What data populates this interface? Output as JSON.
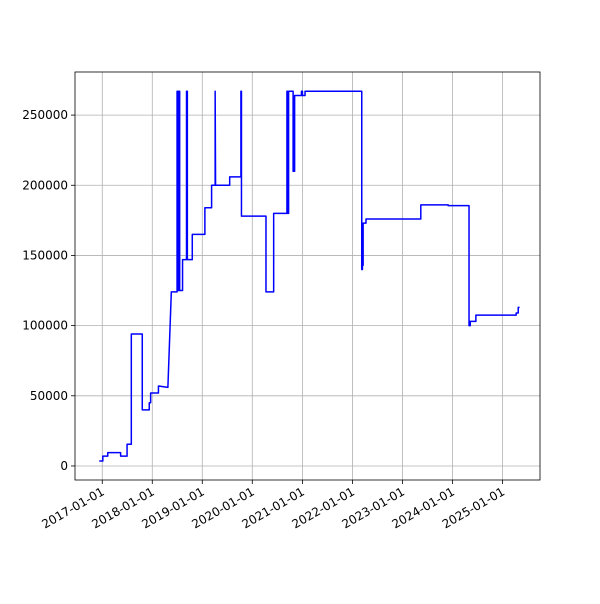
{
  "chart_data": {
    "type": "line",
    "grid": true,
    "series": [
      {
        "color": "#0000ff",
        "x": [
          "2016-12-10",
          "2017-01-05",
          "2017-01-05",
          "2017-02-10",
          "2017-02-10",
          "2017-05-15",
          "2017-05-15",
          "2017-07-01",
          "2017-07-01",
          "2017-08-01",
          "2017-08-01",
          "2017-10-20",
          "2017-10-20",
          "2017-12-10",
          "2017-12-10",
          "2017-12-20",
          "2017-12-20",
          "2018-02-15",
          "2018-02-15",
          "2018-04-25",
          "2018-05-20",
          "2018-07-01",
          "2018-07-01",
          "2018-07-05",
          "2018-07-05",
          "2018-07-12",
          "2018-07-12",
          "2018-07-20",
          "2018-07-20",
          "2018-08-10",
          "2018-08-10",
          "2018-09-08",
          "2018-09-08",
          "2018-09-14",
          "2018-09-14",
          "2018-10-20",
          "2018-10-20",
          "2019-01-20",
          "2019-01-20",
          "2019-03-10",
          "2019-03-10",
          "2019-04-05",
          "2019-04-05",
          "2019-04-08",
          "2019-07-20",
          "2019-07-20",
          "2019-10-10",
          "2019-10-10",
          "2019-10-14",
          "2019-10-14",
          "2020-04-10",
          "2020-04-10",
          "2020-06-05",
          "2020-06-05",
          "2020-09-10",
          "2020-09-10",
          "2020-09-16",
          "2020-09-16",
          "2020-09-22",
          "2020-09-22",
          "2020-10-25",
          "2020-10-25",
          "2020-11-05",
          "2020-11-05",
          "2020-12-25",
          "2020-12-25",
          "2021-01-01",
          "2021-01-01",
          "2021-01-20",
          "2021-01-20",
          "2022-03-10",
          "2022-03-10",
          "2022-03-15",
          "2022-03-15",
          "2022-03-20",
          "2022-03-20",
          "2022-04-10",
          "2022-04-10",
          "2023-05-15",
          "2023-05-15",
          "2023-12-01",
          "2023-12-01",
          "2024-05-01",
          "2024-05-01",
          "2024-05-10",
          "2024-05-10",
          "2024-06-20",
          "2024-06-20",
          "2025-04-10",
          "2025-04-10",
          "2025-04-25",
          "2025-04-25",
          "2025-05-05"
        ],
        "values": [
          3500,
          3500,
          7000,
          7000,
          9500,
          9500,
          7000,
          7000,
          15500,
          15500,
          94000,
          94000,
          40000,
          40000,
          45000,
          45000,
          52000,
          52000,
          57000,
          56000,
          124000,
          124000,
          267000,
          267000,
          125000,
          125000,
          267000,
          267000,
          125000,
          125000,
          147000,
          147000,
          267000,
          267000,
          147000,
          147000,
          165000,
          165000,
          184000,
          184000,
          200000,
          200000,
          267000,
          200000,
          200000,
          206000,
          206000,
          267000,
          267000,
          178000,
          178000,
          124000,
          124000,
          180000,
          180000,
          267000,
          267000,
          180000,
          180000,
          267000,
          267000,
          210000,
          210000,
          264000,
          264000,
          267000,
          267000,
          264000,
          264000,
          267000,
          267000,
          140000,
          140000,
          143000,
          143000,
          173000,
          173000,
          176000,
          176000,
          186000,
          186000,
          185500,
          185500,
          100000,
          100000,
          103000,
          103000,
          107500,
          107500,
          109000,
          109000,
          113000,
          113000
        ]
      }
    ],
    "xlim": [
      "2016-06-16",
      "2025-10-01"
    ],
    "xticks": [
      "2017-01-01",
      "2018-01-01",
      "2019-01-01",
      "2020-01-01",
      "2021-01-01",
      "2022-01-01",
      "2023-01-01",
      "2024-01-01",
      "2025-01-01"
    ],
    "ylim": [
      -10000,
      280700
    ],
    "yticks": [
      0,
      50000,
      100000,
      150000,
      200000,
      250000
    ]
  }
}
